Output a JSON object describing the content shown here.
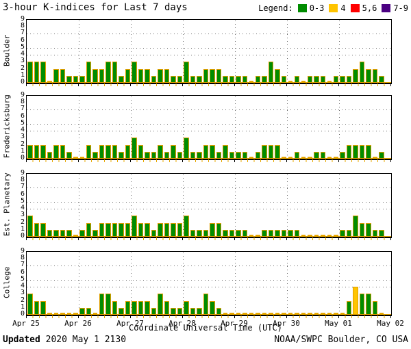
{
  "title": "3-hour K-indices for Last 7 days",
  "legend": {
    "label": "Legend:",
    "items": [
      {
        "label": "0-3",
        "color": "#008c00"
      },
      {
        "label": "4",
        "color": "#ffc400"
      },
      {
        "label": "5,6",
        "color": "#ff0000"
      },
      {
        "label": "7-9",
        "color": "#4b0082"
      }
    ]
  },
  "yaxis": {
    "ticks": [
      "0",
      "1",
      "2",
      "3",
      "4",
      "5",
      "6",
      "7",
      "8",
      "9"
    ],
    "gridline_levels": [
      4,
      5,
      7
    ],
    "max": 9
  },
  "xaxis": {
    "title": "Coordinate Universal Time (UTC)",
    "tick_labels": [
      "Apr 25",
      "Apr 26",
      "Apr 27",
      "Apr 28",
      "Apr 29",
      "Apr 30",
      "May 01",
      "May 02"
    ]
  },
  "footer": {
    "updated_label": "Updated",
    "updated_value": " 2020 May  1 2130",
    "source": "NOAA/SWPC Boulder, CO USA"
  },
  "chart_data": {
    "type": "bar",
    "slots_per_day": 8,
    "interval_hours": 3,
    "days": [
      "Apr 25",
      "Apr 26",
      "Apr 27",
      "Apr 28",
      "Apr 29",
      "Apr 30",
      "May 01",
      "May 02"
    ],
    "ylim": [
      0,
      9
    ],
    "bar_border_color": "#df9e00",
    "value_color_rules": [
      {
        "range": "0-3",
        "color": "#008c00"
      },
      {
        "range": "4",
        "color": "#ffc400"
      },
      {
        "range": "5-6",
        "color": "#ff0000"
      },
      {
        "range": "7-9",
        "color": "#4b0082"
      }
    ],
    "panels": [
      {
        "station": "Boulder",
        "values": [
          3,
          3,
          3,
          0,
          2,
          2,
          1,
          1,
          1,
          3,
          2,
          2,
          3,
          3,
          1,
          2,
          3,
          2,
          2,
          1,
          2,
          2,
          1,
          1,
          3,
          1,
          1,
          2,
          2,
          2,
          1,
          1,
          1,
          1,
          0,
          1,
          1,
          3,
          2,
          1,
          0,
          1,
          0,
          1,
          1,
          1,
          0,
          1,
          1,
          1,
          2,
          3,
          2,
          2,
          1,
          null
        ]
      },
      {
        "station": "Fredericksburg",
        "values": [
          2,
          2,
          2,
          1,
          2,
          2,
          1,
          0,
          0,
          2,
          1,
          2,
          2,
          2,
          1,
          2,
          3,
          2,
          1,
          1,
          2,
          1,
          2,
          1,
          3,
          1,
          1,
          2,
          2,
          1,
          2,
          1,
          1,
          1,
          0,
          1,
          2,
          2,
          2,
          0,
          0,
          1,
          0,
          0,
          1,
          1,
          0,
          0,
          1,
          2,
          2,
          2,
          2,
          0,
          1,
          null
        ]
      },
      {
        "station": "Est. Planetary",
        "values": [
          3,
          2,
          2,
          1,
          1,
          1,
          1,
          0,
          1,
          2,
          1,
          2,
          2,
          2,
          2,
          2,
          3,
          2,
          2,
          1,
          2,
          2,
          2,
          2,
          3,
          1,
          1,
          1,
          2,
          2,
          1,
          1,
          1,
          1,
          0,
          0,
          1,
          1,
          1,
          1,
          1,
          1,
          0,
          0,
          0,
          0,
          0,
          0,
          1,
          1,
          3,
          2,
          2,
          1,
          1,
          null
        ]
      },
      {
        "station": "College",
        "values": [
          3,
          2,
          2,
          0,
          0,
          0,
          0,
          0,
          1,
          1,
          0,
          3,
          3,
          2,
          1,
          2,
          2,
          2,
          2,
          1,
          3,
          2,
          1,
          1,
          2,
          1,
          1,
          3,
          2,
          1,
          0,
          0,
          0,
          0,
          0,
          0,
          0,
          0,
          0,
          0,
          0,
          0,
          0,
          0,
          0,
          0,
          0,
          0,
          0,
          2,
          4,
          3,
          3,
          2,
          0,
          null
        ]
      }
    ]
  }
}
